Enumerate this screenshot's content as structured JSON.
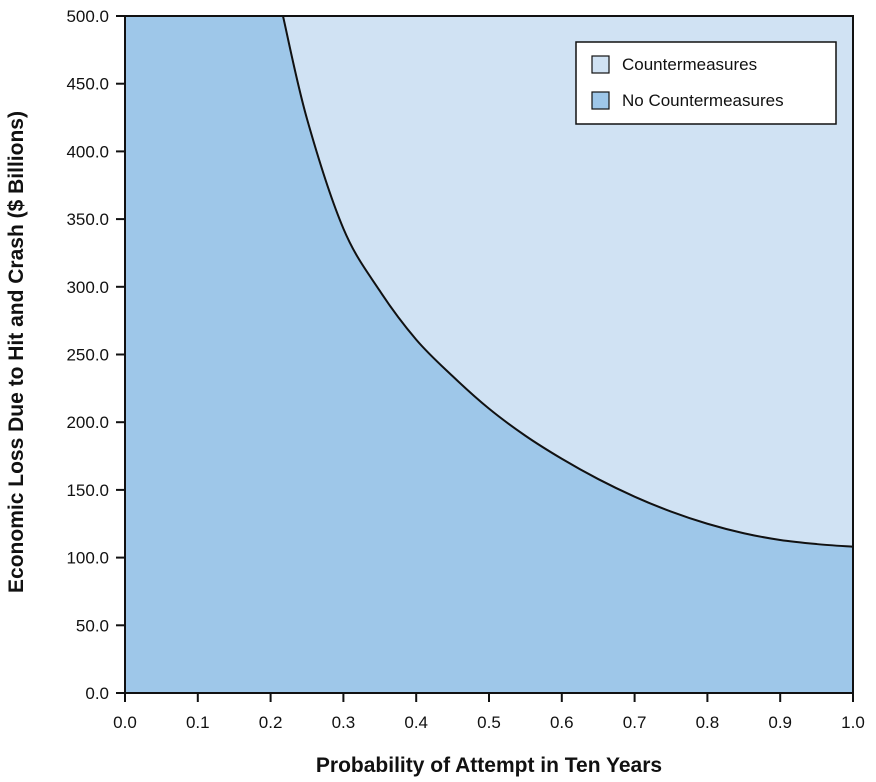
{
  "chart_data": {
    "type": "area",
    "xlabel": "Probability of Attempt in Ten Years",
    "ylabel": "Economic Loss Due to Hit and Crash ($ Billions)",
    "xlim": [
      0.0,
      1.0
    ],
    "ylim": [
      0.0,
      500.0
    ],
    "x_ticks": [
      "0.0",
      "0.1",
      "0.2",
      "0.3",
      "0.4",
      "0.5",
      "0.6",
      "0.7",
      "0.8",
      "0.9",
      "1.0"
    ],
    "y_ticks": [
      "0.0",
      "50.0",
      "100.0",
      "150.0",
      "200.0",
      "250.0",
      "300.0",
      "350.0",
      "400.0",
      "450.0",
      "500.0"
    ],
    "grid": false,
    "legend_position": "top-right",
    "series": [
      {
        "name": "Countermeasures",
        "color": "#d0e2f3",
        "region": "above-curve"
      },
      {
        "name": "No Countermeasures",
        "color": "#9ec7e9",
        "region": "below-curve"
      }
    ],
    "boundary_curve": {
      "x": [
        0.217,
        0.25,
        0.3,
        0.35,
        0.4,
        0.45,
        0.5,
        0.55,
        0.6,
        0.65,
        0.7,
        0.75,
        0.8,
        0.85,
        0.9,
        0.95,
        1.0
      ],
      "y": [
        500,
        424,
        343,
        297,
        261,
        234,
        210,
        190,
        173,
        158,
        145,
        134,
        125,
        118,
        113,
        110,
        108
      ]
    }
  }
}
